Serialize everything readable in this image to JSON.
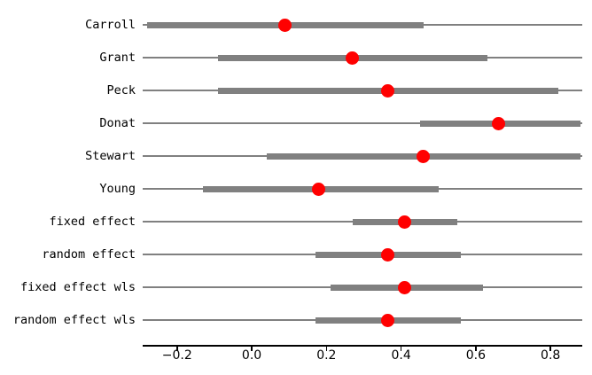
{
  "figure": {
    "background": "#ffffff",
    "title": ""
  },
  "chart_data": {
    "type": "scatter",
    "subtype": "forest-plot",
    "orientation": "horizontal",
    "title": "",
    "xlabel": "",
    "ylabel": "",
    "grid": false,
    "legend": false,
    "guide_lines_full_width": true,
    "categories": [
      "Carroll",
      "Grant",
      "Peck",
      "Donat",
      "Stewart",
      "Young",
      "fixed effect",
      "random effect",
      "fixed effect wls",
      "random effect wls"
    ],
    "points": [
      {
        "label": "Carroll",
        "estimate": 0.09,
        "ci_low": -0.28,
        "ci_high": 0.46
      },
      {
        "label": "Grant",
        "estimate": 0.27,
        "ci_low": -0.09,
        "ci_high": 0.63
      },
      {
        "label": "Peck",
        "estimate": 0.365,
        "ci_low": -0.09,
        "ci_high": 0.82
      },
      {
        "label": "Donat",
        "estimate": 0.66,
        "ci_low": 0.45,
        "ci_high": 0.88
      },
      {
        "label": "Stewart",
        "estimate": 0.46,
        "ci_low": 0.04,
        "ci_high": 0.88
      },
      {
        "label": "Young",
        "estimate": 0.18,
        "ci_low": -0.13,
        "ci_high": 0.5
      },
      {
        "label": "fixed effect",
        "estimate": 0.41,
        "ci_low": 0.27,
        "ci_high": 0.55
      },
      {
        "label": "random effect",
        "estimate": 0.365,
        "ci_low": 0.17,
        "ci_high": 0.56
      },
      {
        "label": "fixed effect wls",
        "estimate": 0.41,
        "ci_low": 0.21,
        "ci_high": 0.62
      },
      {
        "label": "random effect wls",
        "estimate": 0.365,
        "ci_low": 0.17,
        "ci_high": 0.56
      }
    ],
    "xticks": [
      {
        "value": -0.2,
        "label": "−0.2"
      },
      {
        "value": 0.0,
        "label": "0.0"
      },
      {
        "value": 0.2,
        "label": "0.2"
      },
      {
        "value": 0.4,
        "label": "0.4"
      },
      {
        "value": 0.6,
        "label": "0.6"
      },
      {
        "value": 0.8,
        "label": "0.8"
      }
    ],
    "xlim": [
      -0.292,
      0.885
    ],
    "colors": {
      "marker": "#ff0000",
      "interval_bar": "#808080",
      "guide_line": "#808080",
      "axis": "#000000",
      "text": "#000000"
    }
  }
}
